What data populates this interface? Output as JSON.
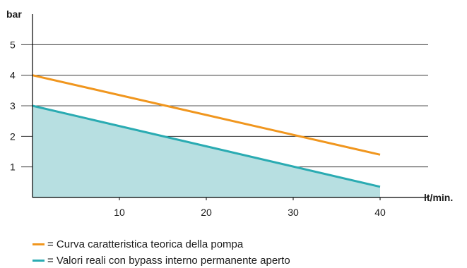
{
  "chart_data": {
    "type": "area",
    "xlabel": "lt/min.",
    "ylabel": "bar",
    "xlim": [
      0,
      40
    ],
    "ylim": [
      0,
      6
    ],
    "xticks": [
      10,
      20,
      30,
      40
    ],
    "yticks": [
      1,
      2,
      3,
      4,
      5
    ],
    "grid": "horizontal",
    "legend_position": "bottom-left",
    "series": [
      {
        "name": "= Curva caratteristica teorica della pompa",
        "color": "#f0961e",
        "x": [
          0,
          40
        ],
        "y": [
          4,
          1.4
        ],
        "fill": false
      },
      {
        "name": "= Valori reali con bypass interno permanente aperto",
        "color": "#2aabb2",
        "fill_color": "#b7dfe1",
        "x": [
          0,
          40
        ],
        "y": [
          3,
          0.35
        ],
        "fill": true
      }
    ]
  }
}
